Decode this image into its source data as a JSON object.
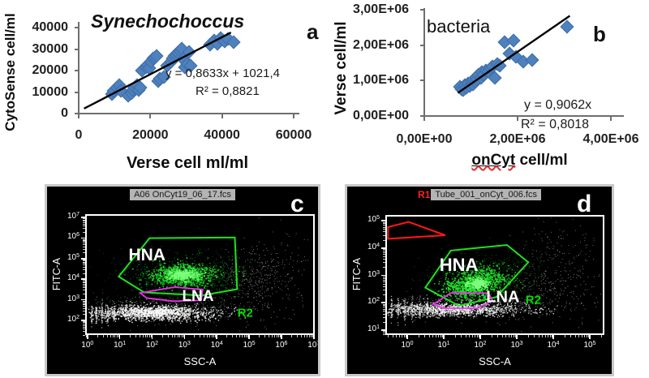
{
  "colors": {
    "diamond": "#4f81bd",
    "diamond_edge": "#3c6da8",
    "trendline": "#000000",
    "axis_line": "#6e6e6e",
    "flow_bg": "#000000",
    "flow_border": "#c9c9c9",
    "flow_frame": "#ffffff",
    "title_box_bg": "#b4b4b4",
    "title_box_text": "#1a1a1a",
    "r1_red": "#ff2222",
    "gate_green": "#1be41b",
    "gate_magenta": "#ee2fee",
    "gate_red": "#ff1717",
    "r2_green": "#00dd00"
  },
  "chart_data": [
    {
      "id": "a",
      "type": "scatter",
      "panel_letter": "a",
      "title": "Synechochoccus",
      "xlabel": "Verse cell ml/ml",
      "ylabel": "CytoSense cell/ml",
      "equation": "y = 0,8633x + 1021,4",
      "r_squared": "R² = 0,8821",
      "xlim": [
        0,
        60000
      ],
      "ylim": [
        0,
        40000
      ],
      "xticks": [
        0,
        20000,
        40000,
        60000
      ],
      "xtick_labels": [
        "0",
        "20000",
        "40000",
        "60000"
      ],
      "yticks": [
        0,
        10000,
        20000,
        30000,
        40000
      ],
      "ytick_labels": [
        "0",
        "10000",
        "20000",
        "30000",
        "40000"
      ],
      "trendline": {
        "x1": 1500,
        "y1": 2316,
        "x2": 42500,
        "y2": 37711
      },
      "points": [
        [
          9000,
          9500
        ],
        [
          9500,
          11000
        ],
        [
          10500,
          12500
        ],
        [
          11000,
          13500
        ],
        [
          11500,
          11000
        ],
        [
          13500,
          8500
        ],
        [
          14500,
          10000
        ],
        [
          15000,
          11500
        ],
        [
          15500,
          12500
        ],
        [
          16000,
          13500
        ],
        [
          16500,
          11500
        ],
        [
          17000,
          12500
        ],
        [
          17500,
          20500
        ],
        [
          18500,
          22000
        ],
        [
          19000,
          23000
        ],
        [
          19500,
          21500
        ],
        [
          20000,
          24500
        ],
        [
          20500,
          26000
        ],
        [
          21000,
          26500
        ],
        [
          21500,
          27000
        ],
        [
          22000,
          15500
        ],
        [
          22500,
          16500
        ],
        [
          23500,
          17500
        ],
        [
          24500,
          22500
        ],
        [
          25500,
          24500
        ],
        [
          26000,
          26000
        ],
        [
          26500,
          27000
        ],
        [
          27000,
          28000
        ],
        [
          27500,
          28500
        ],
        [
          28000,
          29500
        ],
        [
          28500,
          30500
        ],
        [
          29000,
          25500
        ],
        [
          29500,
          22000
        ],
        [
          30000,
          23500
        ],
        [
          30500,
          29000
        ],
        [
          31000,
          22500
        ],
        [
          36500,
          32500
        ],
        [
          37500,
          34500
        ],
        [
          38500,
          33000
        ],
        [
          39500,
          35500
        ],
        [
          40500,
          34000
        ],
        [
          41500,
          35200
        ],
        [
          43000,
          33500
        ]
      ]
    },
    {
      "id": "b",
      "type": "scatter",
      "panel_letter": "b",
      "title": "bacteria",
      "xlabel_parts": [
        "onCyt",
        " cell/ml"
      ],
      "ylabel": "Verse cell/ml",
      "equation": "y = 0,9062x",
      "r_squared": "R² = 0,8018",
      "xlim": [
        0,
        4000000
      ],
      "ylim": [
        0,
        3000000
      ],
      "xticks": [
        0,
        2000000,
        4000000
      ],
      "xtick_labels": [
        "0,00E+00",
        "2,00E+06",
        "4,00E+06"
      ],
      "yticks": [
        0,
        1000000,
        2000000,
        3000000
      ],
      "ytick_labels": [
        "0,00E+00",
        "1,00E+06",
        "2,00E+06",
        "3,00E+06"
      ],
      "trendline": {
        "x1": 720000,
        "y1": 652000,
        "x2": 3120000,
        "y2": 2828000
      },
      "points": [
        [
          750000,
          850000
        ],
        [
          780000,
          780000
        ],
        [
          820000,
          750000
        ],
        [
          850000,
          900000
        ],
        [
          880000,
          820000
        ],
        [
          920000,
          950000
        ],
        [
          950000,
          880000
        ],
        [
          1000000,
          1000000
        ],
        [
          1020000,
          920000
        ],
        [
          1050000,
          1050000
        ],
        [
          1080000,
          980000
        ],
        [
          1100000,
          1120000
        ],
        [
          1120000,
          1050000
        ],
        [
          1150000,
          1180000
        ],
        [
          1200000,
          1100000
        ],
        [
          1220000,
          1250000
        ],
        [
          1250000,
          1180000
        ],
        [
          1300000,
          1300000
        ],
        [
          1350000,
          1280000
        ],
        [
          1400000,
          1380000
        ],
        [
          1450000,
          1420000
        ],
        [
          1500000,
          1100000
        ],
        [
          1550000,
          1500000
        ],
        [
          1600000,
          1450000
        ],
        [
          1700000,
          2100000
        ],
        [
          1800000,
          1780000
        ],
        [
          1900000,
          2150000
        ],
        [
          1950000,
          1700000
        ],
        [
          2100000,
          1550000
        ],
        [
          2300000,
          1600000
        ],
        [
          3050000,
          2550000
        ]
      ]
    },
    {
      "id": "c",
      "type": "flow_scatter",
      "panel_letter": "c",
      "title_prefix": "",
      "title": "A06 OnCyt19_06_17.fcs",
      "xlabel": "SSC-A",
      "ylabel": "FITC-A",
      "x_range_exp": [
        -0.07,
        7.03
      ],
      "y_range_exp": [
        1.29,
        7.16
      ],
      "xtick_exps": [
        0,
        1,
        2,
        3,
        4,
        5,
        6,
        7
      ],
      "ytick_exps": [
        2,
        3,
        4,
        5,
        6,
        7
      ],
      "gates": [
        {
          "name": "HNA-gate",
          "color": "#1be41b",
          "width": 2,
          "points": [
            [
              0.141,
              0.517
            ],
            [
              0.277,
              0.19
            ],
            [
              0.654,
              0.184
            ],
            [
              0.664,
              0.624
            ],
            [
              0.505,
              0.678
            ],
            [
              0.253,
              0.651
            ]
          ]
        },
        {
          "name": "LNA-gate",
          "color": "#ee2fee",
          "width": 1.8,
          "points": [
            [
              0.236,
              0.656
            ],
            [
              0.389,
              0.606
            ],
            [
              0.512,
              0.628
            ],
            [
              0.505,
              0.719
            ],
            [
              0.382,
              0.726
            ],
            [
              0.265,
              0.699
            ]
          ]
        }
      ],
      "region_labels": [
        {
          "text": "HNA",
          "fx": 0.266,
          "fy": 0.34,
          "color": "#ffffff",
          "size": 21,
          "bold": true
        },
        {
          "text": "LNA",
          "fx": 0.491,
          "fy": 0.687,
          "color": "#ffffff",
          "size": 19,
          "bold": true
        },
        {
          "text": "R2",
          "fx": 0.7,
          "fy": 0.83,
          "color": "#00dd00",
          "size": 15,
          "bold": true
        }
      ],
      "clouds": [
        {
          "kind": "gauss",
          "cx": 0.43,
          "cy": 0.5,
          "sx": 0.12,
          "sy": 0.07,
          "n": 600,
          "color": "#15b51f",
          "size": 1.2,
          "alpha": 0.6
        },
        {
          "kind": "gauss",
          "cx": 0.45,
          "cy": 0.47,
          "sx": 0.17,
          "sy": 0.11,
          "n": 260,
          "color": "#0f9218",
          "size": 1.0,
          "alpha": 0.5
        },
        {
          "kind": "gauss",
          "cx": 0.6,
          "cy": 0.5,
          "sx": 0.06,
          "sy": 0.07,
          "n": 110,
          "color": "#0f9218",
          "size": 1.0,
          "alpha": 0.5
        },
        {
          "kind": "gauss",
          "cx": 0.42,
          "cy": 0.5,
          "sx": 0.07,
          "sy": 0.045,
          "n": 750,
          "color": "#26e22e",
          "size": 1.6,
          "alpha": 0.85
        },
        {
          "kind": "gauss",
          "cx": 0.42,
          "cy": 0.5,
          "sx": 0.035,
          "sy": 0.022,
          "n": 280,
          "color": "#7dff7d",
          "size": 1.6,
          "alpha": 0.9
        },
        {
          "kind": "gauss",
          "cx": 0.32,
          "cy": 0.8,
          "sx": 0.19,
          "sy": 0.055,
          "n": 600,
          "color": "#cfcfcf",
          "size": 1.0,
          "alpha": 0.55
        },
        {
          "kind": "gauss",
          "cx": 0.3,
          "cy": 0.82,
          "sx": 0.13,
          "sy": 0.03,
          "n": 1250,
          "color": "#ffffff",
          "size": 1.4,
          "alpha": 0.85
        },
        {
          "kind": "gauss",
          "cx": 0.35,
          "cy": 0.7,
          "sx": 0.15,
          "sy": 0.05,
          "n": 180,
          "color": "#11a51a",
          "size": 1.0,
          "alpha": 0.45
        },
        {
          "kind": "gauss",
          "cx": 0.73,
          "cy": 0.55,
          "sx": 0.07,
          "sy": 0.15,
          "n": 280,
          "color": "#c8c8c8",
          "size": 1.0,
          "alpha": 0.6
        },
        {
          "kind": "gauss",
          "cx": 0.84,
          "cy": 0.45,
          "sx": 0.07,
          "sy": 0.2,
          "n": 130,
          "color": "#bdbdbd",
          "size": 1.0,
          "alpha": 0.55
        },
        {
          "kind": "vcols",
          "xs": [
            0.02,
            0.04,
            0.065,
            0.09,
            0.12
          ],
          "cy": 0.83,
          "sy": 0.04,
          "n": 40,
          "color": "#dddddd",
          "size": 1.2,
          "alpha": 0.8
        }
      ]
    },
    {
      "id": "d",
      "type": "flow_scatter",
      "panel_letter": "d",
      "title_prefix": "R1",
      "title": "Tube_001_onCyt_006.fcs",
      "xlabel": "SSC-A",
      "ylabel": "FITC-A",
      "x_range_exp": [
        -0.6,
        5.4
      ],
      "y_range_exp": [
        0.82,
        5.21
      ],
      "xtick_exps": [
        0,
        1,
        2,
        3,
        4,
        5
      ],
      "ytick_exps": [
        1,
        2,
        3,
        4,
        5
      ],
      "gates": [
        {
          "name": "R1-gate",
          "color": "#ff1717",
          "width": 2,
          "points": [
            [
              0.005,
              0.09
            ],
            [
              0.1,
              0.045
            ],
            [
              0.27,
              0.16
            ],
            [
              0.005,
              0.19
            ]
          ]
        },
        {
          "name": "HNA-gate",
          "color": "#1be41b",
          "width": 2,
          "points": [
            [
              0.178,
              0.608
            ],
            [
              0.296,
              0.291
            ],
            [
              0.556,
              0.243
            ],
            [
              0.655,
              0.392
            ],
            [
              0.507,
              0.689
            ],
            [
              0.333,
              0.764
            ]
          ]
        },
        {
          "name": "LNA-gate",
          "color": "#ee2fee",
          "width": 1.8,
          "points": [
            [
              0.215,
              0.75
            ],
            [
              0.296,
              0.655
            ],
            [
              0.47,
              0.655
            ],
            [
              0.49,
              0.72
            ],
            [
              0.42,
              0.785
            ],
            [
              0.26,
              0.785
            ]
          ]
        }
      ],
      "region_labels": [
        {
          "text": "HNA",
          "fx": 0.333,
          "fy": 0.42,
          "color": "#ffffff",
          "size": 22,
          "bold": true
        },
        {
          "text": "LNA",
          "fx": 0.537,
          "fy": 0.696,
          "color": "#ffffff",
          "size": 20,
          "bold": true
        },
        {
          "text": "R2",
          "fx": 0.678,
          "fy": 0.716,
          "color": "#00dd00",
          "size": 15,
          "bold": true
        }
      ],
      "clouds": [
        {
          "kind": "gauss",
          "cx": 0.42,
          "cy": 0.56,
          "sx": 0.12,
          "sy": 0.1,
          "n": 500,
          "color": "#129c1b",
          "size": 1.1,
          "alpha": 0.55
        },
        {
          "kind": "gauss",
          "cx": 0.55,
          "cy": 0.42,
          "sx": 0.1,
          "sy": 0.09,
          "n": 170,
          "color": "#0f8f17",
          "size": 1.0,
          "alpha": 0.5
        },
        {
          "kind": "gauss",
          "cx": 0.37,
          "cy": 0.6,
          "sx": 0.055,
          "sy": 0.05,
          "n": 650,
          "color": "#26e22e",
          "size": 1.6,
          "alpha": 0.85
        },
        {
          "kind": "gauss",
          "cx": 0.46,
          "cy": 0.52,
          "sx": 0.055,
          "sy": 0.05,
          "n": 500,
          "color": "#26e22e",
          "size": 1.5,
          "alpha": 0.8
        },
        {
          "kind": "gauss",
          "cx": 0.42,
          "cy": 0.57,
          "sx": 0.025,
          "sy": 0.02,
          "n": 220,
          "color": "#80ff80",
          "size": 1.6,
          "alpha": 0.9
        },
        {
          "kind": "gauss",
          "cx": 0.35,
          "cy": 0.77,
          "sx": 0.22,
          "sy": 0.05,
          "n": 500,
          "color": "#cccccc",
          "size": 1.0,
          "alpha": 0.55
        },
        {
          "kind": "gauss",
          "cx": 0.3,
          "cy": 0.79,
          "sx": 0.17,
          "sy": 0.028,
          "n": 1150,
          "color": "#ffffff",
          "size": 1.3,
          "alpha": 0.85
        },
        {
          "kind": "gauss",
          "cx": 0.75,
          "cy": 0.6,
          "sx": 0.13,
          "sy": 0.14,
          "n": 280,
          "color": "#c4c4c4",
          "size": 1.0,
          "alpha": 0.6
        },
        {
          "kind": "gauss",
          "cx": 0.8,
          "cy": 0.25,
          "sx": 0.1,
          "sy": 0.1,
          "n": 90,
          "color": "#bbbbbb",
          "size": 1.0,
          "alpha": 0.55
        },
        {
          "kind": "vcols",
          "xs": [
            0.02,
            0.05,
            0.08,
            0.115,
            0.15,
            0.185
          ],
          "cy": 0.79,
          "sy": 0.05,
          "n": 35,
          "color": "#dddddd",
          "size": 1.2,
          "alpha": 0.8
        }
      ]
    }
  ]
}
